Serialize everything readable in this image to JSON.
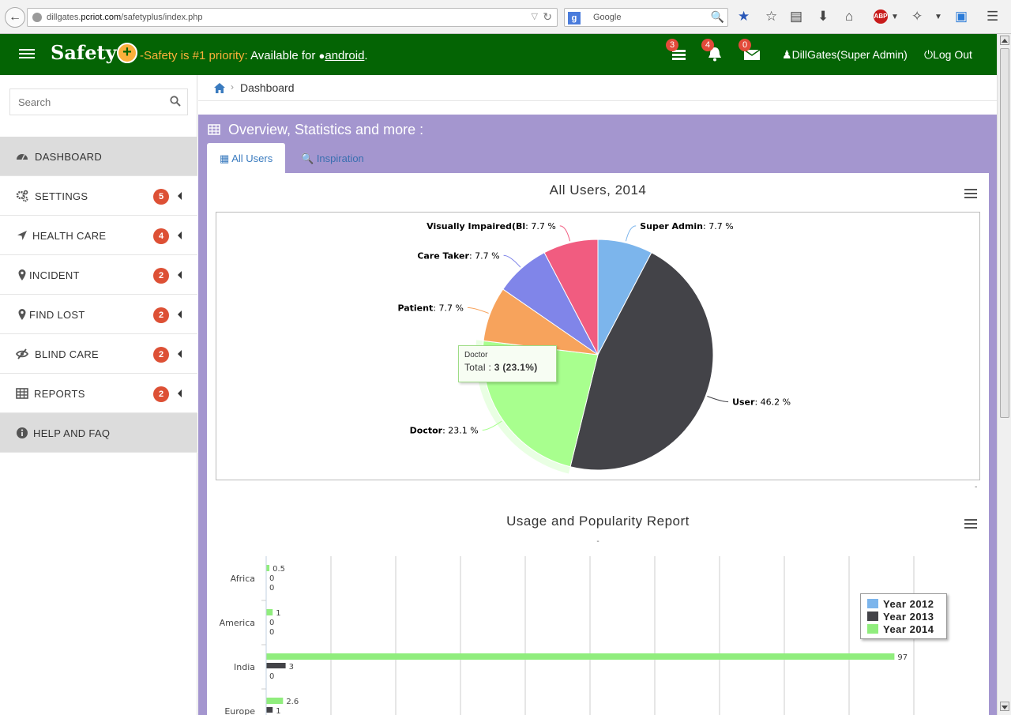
{
  "browser": {
    "url_prefix": "dillgates.",
    "url_domain": "pcriot.com",
    "url_path": "/safetyplus/index.php",
    "search_engine_placeholder": "Google"
  },
  "navbar": {
    "brand": "Safety",
    "tagline_priority": "-Safety is #1 priority:",
    "tagline_available": "Available for",
    "tagline_android": "android",
    "tagline_end": ".",
    "tasks_count": "3",
    "notifications_count": "4",
    "messages_count": "0",
    "user": "DillGates(Super Admin)",
    "logout": "Log Out"
  },
  "sidebar": {
    "search_placeholder": "Search",
    "items": [
      {
        "label": "DASHBOARD",
        "badge": null,
        "icon": "dashboard-icon"
      },
      {
        "label": "SETTINGS",
        "badge": "5",
        "icon": "gears-icon"
      },
      {
        "label": "HEALTH CARE",
        "badge": "4",
        "icon": "location-arrow-icon"
      },
      {
        "label": "INCIDENT",
        "badge": "2",
        "icon": "map-marker-icon"
      },
      {
        "label": "FIND LOST",
        "badge": "2",
        "icon": "map-marker-icon"
      },
      {
        "label": "BLIND CARE",
        "badge": "2",
        "icon": "eye-slash-icon"
      },
      {
        "label": "REPORTS",
        "badge": "2",
        "icon": "table-icon"
      },
      {
        "label": "HELP AND FAQ",
        "badge": null,
        "icon": "info-circle-icon"
      }
    ]
  },
  "breadcrumb": {
    "current": "Dashboard"
  },
  "panel": {
    "title": "Overview, Statistics and more :",
    "tabs": [
      {
        "label": "All Users",
        "active": true
      },
      {
        "label": "Inspiration",
        "active": false
      }
    ]
  },
  "tooltip": {
    "name": "Doctor",
    "label": "Total :",
    "value": "3 (23.1%)"
  },
  "chart_data": [
    {
      "type": "pie",
      "title": "All Users, 2014",
      "slices": [
        {
          "name": "Super Admin",
          "value": 7.7,
          "label": "7.7 %",
          "color": "#7cb5ec"
        },
        {
          "name": "User",
          "value": 46.2,
          "label": "46.2 %",
          "color": "#434348"
        },
        {
          "name": "Doctor",
          "value": 23.1,
          "label": "23.1 %",
          "color": "#a8ff8e"
        },
        {
          "name": "Patient",
          "value": 7.7,
          "label": "7.7 %",
          "color": "#f7a35c"
        },
        {
          "name": "Care Taker",
          "value": 7.7,
          "label": "7.7 %",
          "color": "#8085e9"
        },
        {
          "name": "Visually Impaired(Bl",
          "value": 7.7,
          "label": "7.7 %",
          "color": "#f15c80"
        }
      ]
    },
    {
      "type": "bar",
      "orientation": "horizontal",
      "title": "Usage and Popularity Report",
      "subtitle": "-",
      "categories": [
        "Africa",
        "America",
        "India",
        "Europe"
      ],
      "series": [
        {
          "name": "Year 2012",
          "color": "#7cb5ec",
          "values": [
            0,
            0,
            0,
            0
          ]
        },
        {
          "name": "Year 2013",
          "color": "#434348",
          "values": [
            0,
            0,
            3,
            1
          ]
        },
        {
          "name": "Year 2014",
          "color": "#90ed7d",
          "values": [
            0.5,
            1,
            97,
            2.6
          ]
        }
      ],
      "value_labels": [
        [
          "0.5",
          "0",
          "0"
        ],
        [
          "1",
          "0",
          "0"
        ],
        [
          "97",
          "3",
          "0"
        ],
        [
          "2.6",
          "1",
          ""
        ]
      ],
      "xlim": [
        0,
        100
      ],
      "grid": true,
      "legend_position": "right"
    }
  ],
  "pie_footer": "-"
}
